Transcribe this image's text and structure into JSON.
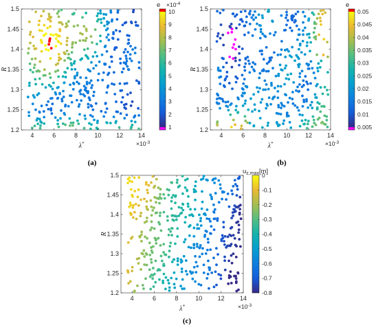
{
  "chart_data": [
    {
      "id": "a",
      "type": "scatter",
      "caption": "(a)",
      "xlabel": "λ",
      "xlabel_sup": "*",
      "ylabel": "R",
      "x_multiplier": "×10",
      "x_multiplier_exp": "-3",
      "xlim": [
        3,
        14
      ],
      "ylim": [
        1.2,
        1.5
      ],
      "xticks": [
        "4",
        "6",
        "8",
        "10",
        "12",
        "14"
      ],
      "yticks": [
        "1.2",
        "1.25",
        "1.3",
        "1.35",
        "1.4",
        "1.45",
        "1.5"
      ],
      "point_count": 450,
      "colorbar": {
        "title": "e",
        "multiplier": "×10",
        "multiplier_exp": "-4",
        "range": [
          1,
          10
        ],
        "ticks": [
          "1",
          "2",
          "3",
          "4",
          "5",
          "6",
          "7",
          "8",
          "9",
          "10"
        ],
        "colormap": "parula",
        "under_color": "#ff00ff",
        "over_color": "#ff0000"
      }
    },
    {
      "id": "b",
      "type": "scatter",
      "caption": "(b)",
      "xlabel": "λ",
      "xlabel_sup": "*",
      "ylabel": "R",
      "x_multiplier": "×10",
      "x_multiplier_exp": "-3",
      "xlim": [
        3,
        14
      ],
      "ylim": [
        1.2,
        1.5
      ],
      "xticks": [
        "4",
        "6",
        "8",
        "10",
        "12",
        "14"
      ],
      "yticks": [
        "1.2",
        "1.25",
        "1.3",
        "1.35",
        "1.4",
        "1.45",
        "1.5"
      ],
      "point_count": 450,
      "colorbar": {
        "title": "e",
        "range": [
          0.005,
          0.05
        ],
        "ticks": [
          "0.005",
          "0.01",
          "0.015",
          "0.02",
          "0.025",
          "0.03",
          "0.035",
          "0.04",
          "0.045",
          "0.05"
        ],
        "colormap": "parula",
        "under_color": "#ff00ff",
        "over_color": "#ff0000"
      }
    },
    {
      "id": "c",
      "type": "scatter",
      "caption": "(c)",
      "xlabel": "λ",
      "xlabel_sup": "*",
      "ylabel": "R",
      "x_multiplier": "×10",
      "x_multiplier_exp": "-3",
      "xlim": [
        3,
        14
      ],
      "ylim": [
        1.2,
        1.5
      ],
      "xticks": [
        "4",
        "6",
        "8",
        "10",
        "12",
        "14"
      ],
      "yticks": [
        "1.2",
        "1.25",
        "1.3",
        "1.35",
        "1.4",
        "1.45",
        "1.5"
      ],
      "point_count": 450,
      "colorbar": {
        "title": "u",
        "title_sub": "z,max",
        "title_unit": "[m]",
        "range": [
          -0.8,
          0
        ],
        "ticks": [
          "0",
          "-0.1",
          "-0.2",
          "-0.3",
          "-0.4",
          "-0.5",
          "-0.6",
          "-0.7",
          "-0.8"
        ],
        "colormap": "parula"
      }
    }
  ]
}
